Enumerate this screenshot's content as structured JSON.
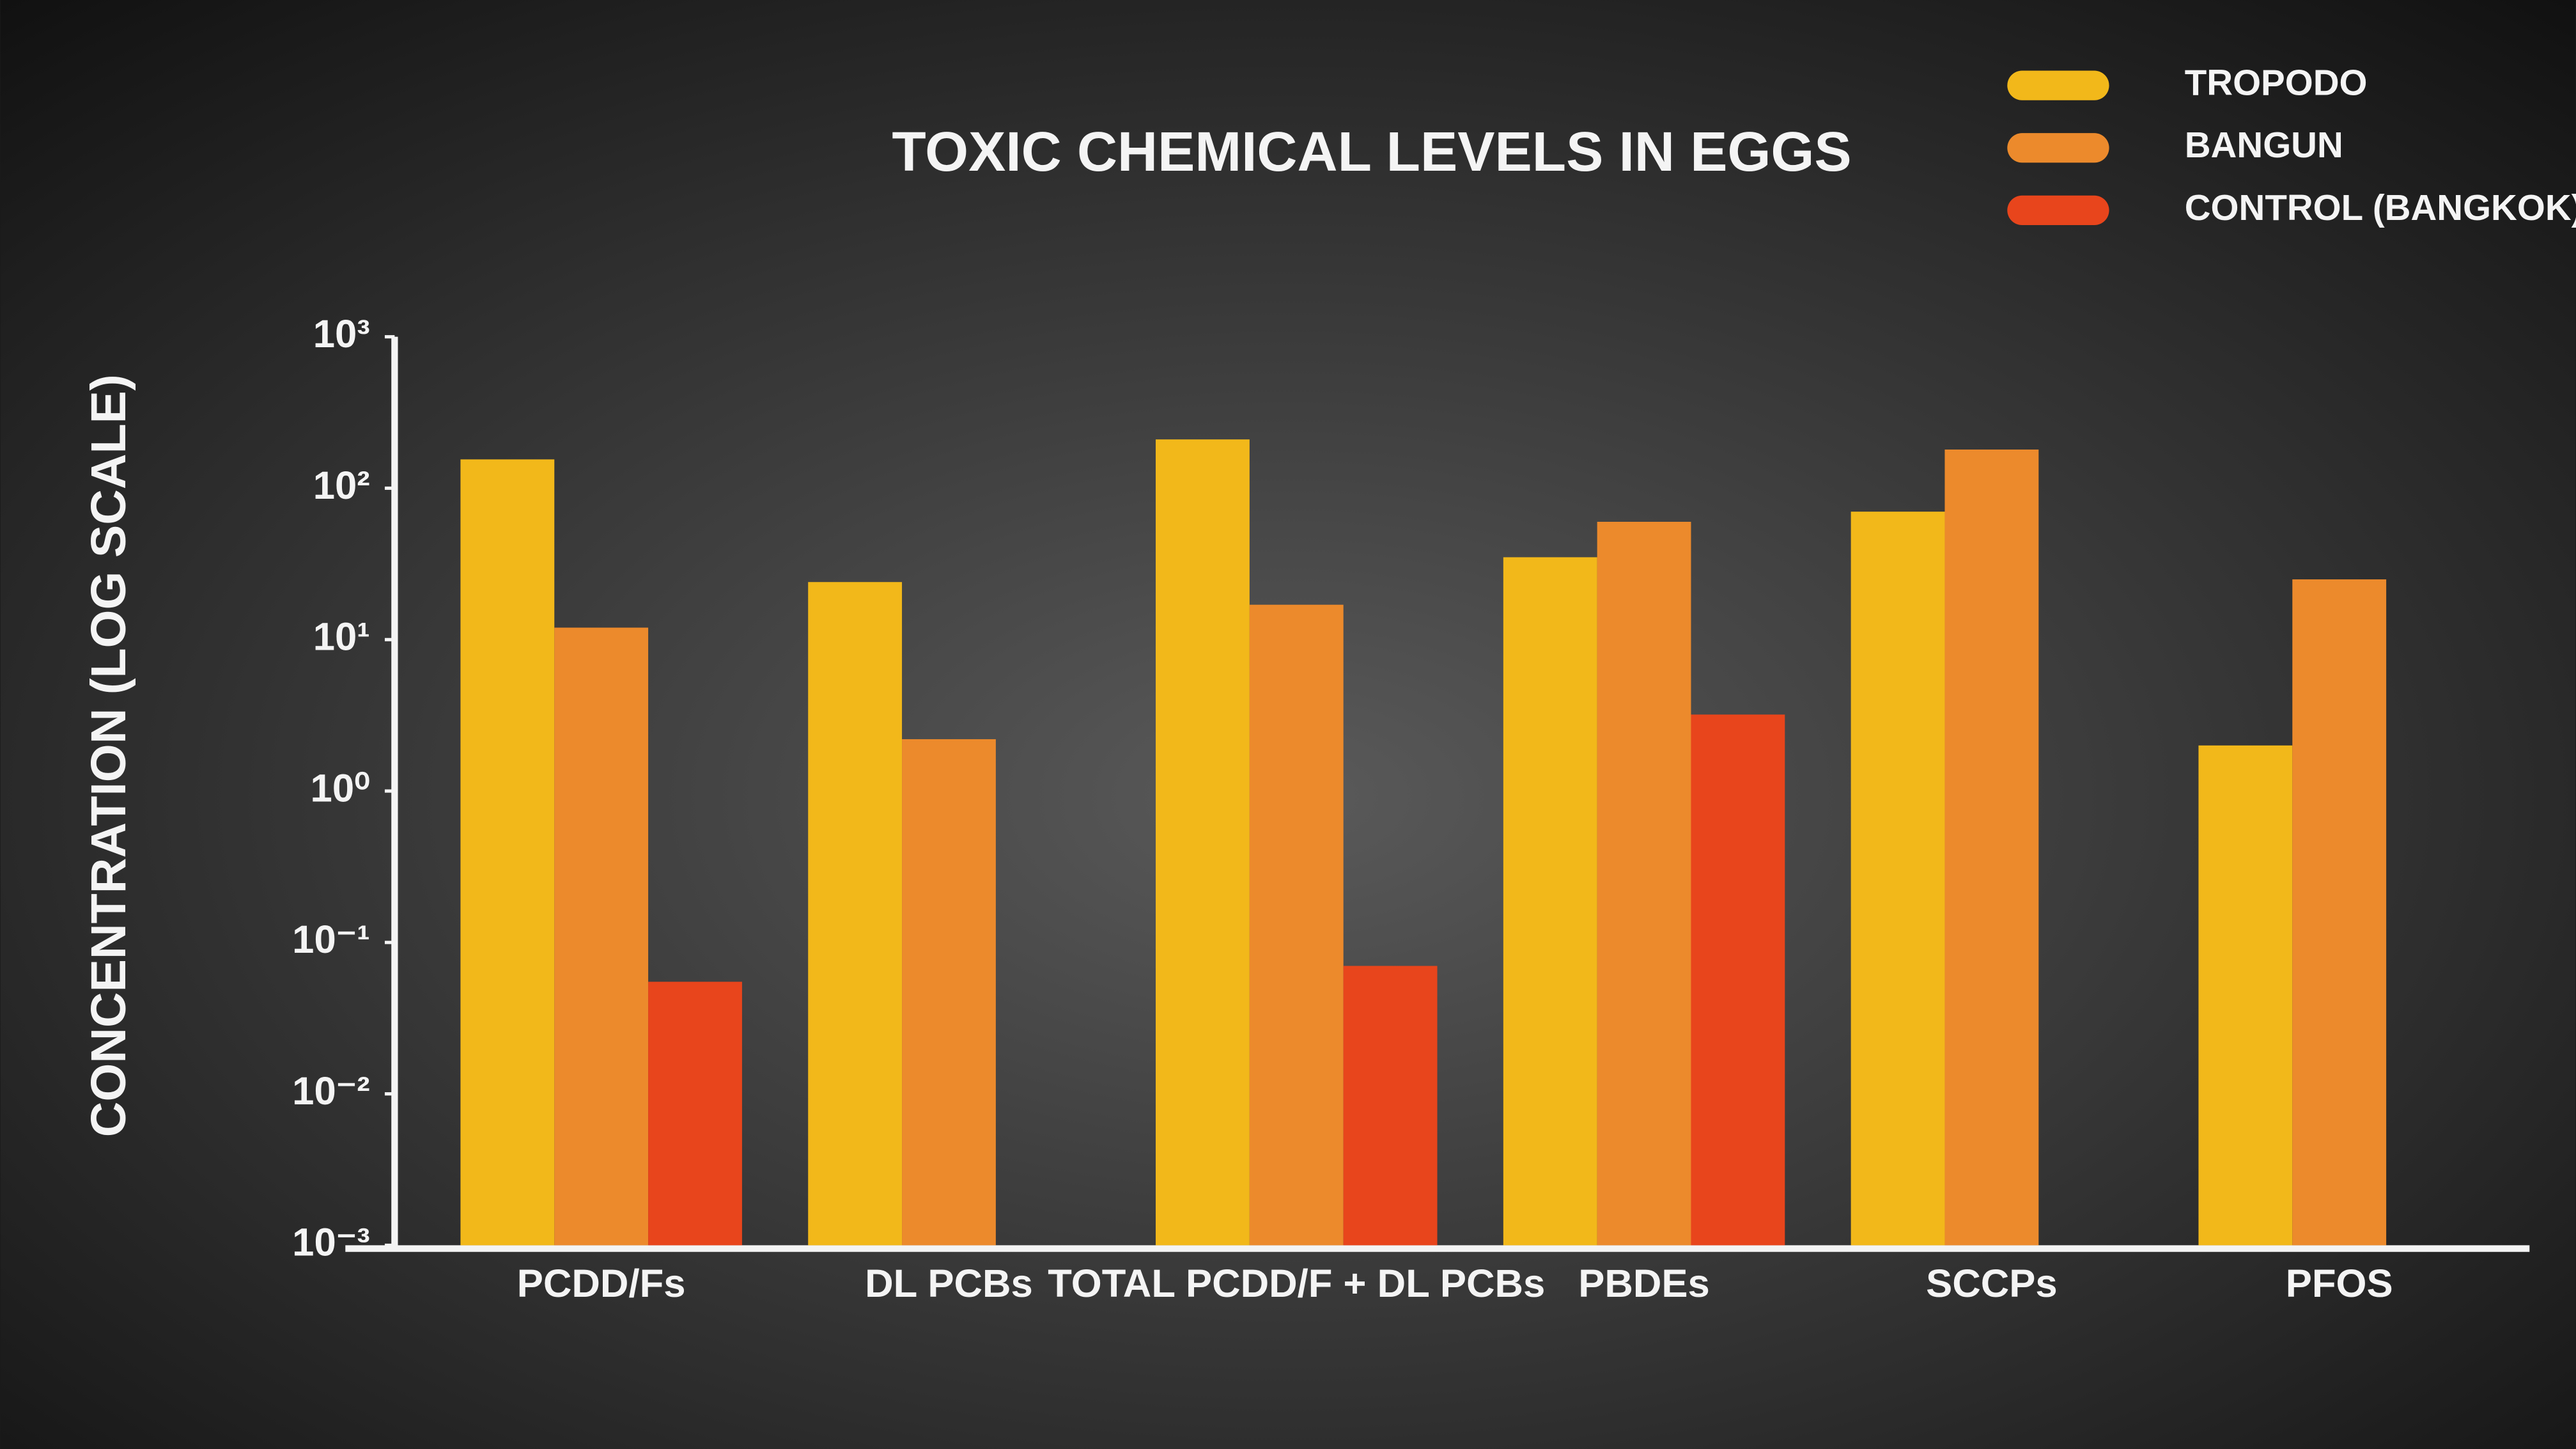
{
  "chart_data": {
    "type": "bar",
    "title": "TOXIC CHEMICAL LEVELS IN EGGS",
    "y_label": "CONCENTRATION (LOG SCALE)",
    "log_scale": true,
    "legend": "top-right",
    "categories": [
      "PCDD/Fs",
      "DL PCBs",
      "TOTAL PCDD/F + DL PCBs",
      "PBDEs",
      "SCCPs",
      "PFOS"
    ],
    "series": [
      {
        "name": "TROPODO",
        "color": "#f2b81a",
        "values": [
          155,
          24,
          210,
          35,
          70,
          2
        ]
      },
      {
        "name": "BANGUN",
        "color": "#ec8a2c",
        "values": [
          12,
          2.2,
          17,
          60,
          180,
          25
        ]
      },
      {
        "name": "CONTROL (BANGKOK)",
        "color": "#e8451c",
        "values": [
          0.055,
          null,
          0.07,
          3.2,
          null,
          null
        ]
      }
    ],
    "ylim": [
      0.001,
      1000
    ],
    "yticks": [
      {
        "value": 0.001,
        "label": "10⁻³"
      },
      {
        "value": 0.01,
        "label": "10⁻²"
      },
      {
        "value": 0.1,
        "label": "10⁻¹"
      },
      {
        "value": 1,
        "label": "10⁰"
      },
      {
        "value": 10,
        "label": "10¹"
      },
      {
        "value": 100,
        "label": "10²"
      },
      {
        "value": 1000,
        "label": "10³"
      }
    ]
  }
}
